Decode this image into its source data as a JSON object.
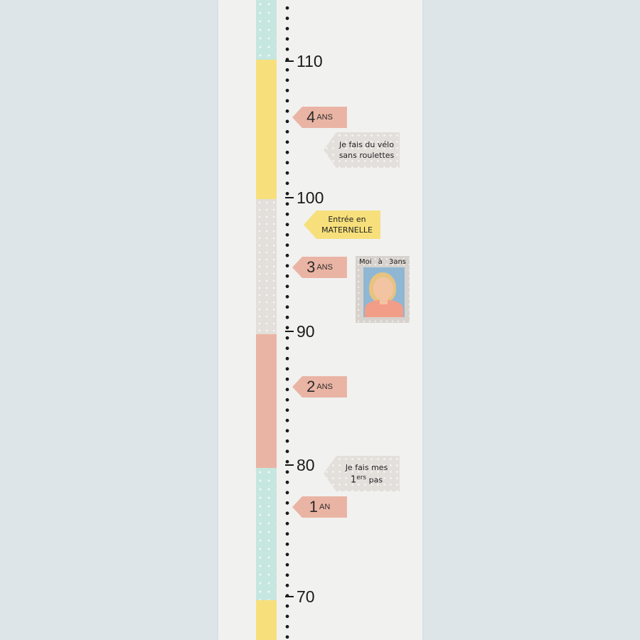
{
  "ticks": [
    {
      "label": "110"
    },
    {
      "label": "100"
    },
    {
      "label": "90"
    },
    {
      "label": "80"
    },
    {
      "label": "70"
    }
  ],
  "ages": [
    {
      "number": "4",
      "unit": "ANS"
    },
    {
      "number": "3",
      "unit": "ANS"
    },
    {
      "number": "2",
      "unit": "ANS"
    },
    {
      "number": "1",
      "unit": "AN"
    }
  ],
  "notes": {
    "velo": {
      "line1": "Je fais du vélo",
      "line2": "sans roulettes"
    },
    "maternelle": {
      "line1": "Entrée en",
      "line2": "MATERNELLE"
    },
    "pas": {
      "line1": "Je fais mes",
      "big": "1",
      "sup": "ers",
      "tail": "pas"
    }
  },
  "photo": {
    "caption": "Moi à 3ans"
  },
  "colors": {
    "background": "#dde5e9",
    "chart": "#f1f1f0",
    "mint": "#c6e6e0",
    "yellow": "#f7e07b",
    "grey": "#e3dfdb",
    "pink": "#eab4a4"
  }
}
